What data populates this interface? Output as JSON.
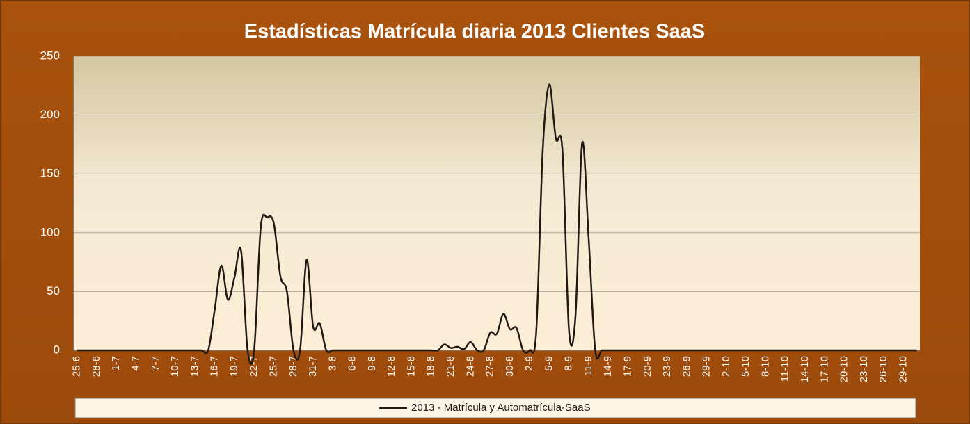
{
  "chart_data": {
    "type": "line",
    "title": "Estadísticas Matrícula diaria 2013 Clientes SaaS",
    "categories": [
      "25-6",
      null,
      null,
      "28-6",
      null,
      null,
      "1-7",
      null,
      null,
      "4-7",
      null,
      null,
      "7-7",
      null,
      null,
      "10-7",
      null,
      null,
      "13-7",
      null,
      null,
      "16-7",
      null,
      null,
      "19-7",
      null,
      null,
      "22-7",
      null,
      null,
      "25-7",
      null,
      null,
      "28-7",
      null,
      null,
      "31-7",
      null,
      null,
      "3-8",
      null,
      null,
      "6-8",
      null,
      null,
      "9-8",
      null,
      null,
      "12-8",
      null,
      null,
      "15-8",
      null,
      null,
      "18-8",
      null,
      null,
      "21-8",
      null,
      null,
      "24-8",
      null,
      null,
      "27-8",
      null,
      null,
      "30-8",
      null,
      null,
      "2-9",
      null,
      null,
      "5-9",
      null,
      null,
      "8-9",
      null,
      null,
      "11-9",
      null,
      null,
      "14-9",
      null,
      null,
      "17-9",
      null,
      null,
      "20-9",
      null,
      null,
      "23-9",
      null,
      null,
      "26-9",
      null,
      null,
      "29-9",
      null,
      null,
      "2-10",
      null,
      null,
      "5-10",
      null,
      null,
      "8-10",
      null,
      null,
      "11-10",
      null,
      null,
      "14-10",
      null,
      null,
      "17-10",
      null,
      null,
      "20-10",
      null,
      null,
      "23-10",
      null,
      null,
      "26-10",
      null,
      null,
      "29-10",
      null,
      null
    ],
    "series": [
      {
        "name": "2013 - Matrícula y Automatrícula-SaaS",
        "color": "#1f1a14",
        "values": [
          0,
          0,
          0,
          0,
          0,
          0,
          0,
          0,
          0,
          0,
          0,
          0,
          0,
          0,
          0,
          0,
          0,
          0,
          0,
          0,
          0,
          35,
          72,
          43,
          62,
          85,
          0,
          0,
          104,
          113,
          108,
          63,
          50,
          0,
          0,
          77,
          20,
          23,
          0,
          0,
          0,
          0,
          0,
          0,
          0,
          0,
          0,
          0,
          0,
          0,
          0,
          0,
          0,
          0,
          0,
          0,
          5,
          2,
          3,
          1,
          7,
          0,
          0,
          15,
          14,
          31,
          18,
          19,
          0,
          0,
          15,
          170,
          226,
          180,
          170,
          17,
          30,
          176,
          95,
          0,
          0,
          0,
          0,
          0,
          0,
          0,
          0,
          0,
          0,
          0,
          0,
          0,
          0,
          0,
          0,
          0,
          0,
          0,
          0,
          0,
          0,
          0,
          0,
          0,
          0,
          0,
          0,
          0,
          0,
          0,
          0,
          0,
          0,
          0,
          0,
          0,
          0,
          0,
          0,
          0,
          0,
          0,
          0,
          0,
          0,
          0,
          0,
          0,
          0
        ]
      }
    ],
    "ylim": [
      0,
      250
    ],
    "yticks": [
      0,
      50,
      100,
      150,
      200,
      250
    ],
    "grid": true,
    "legend": "bottom"
  }
}
